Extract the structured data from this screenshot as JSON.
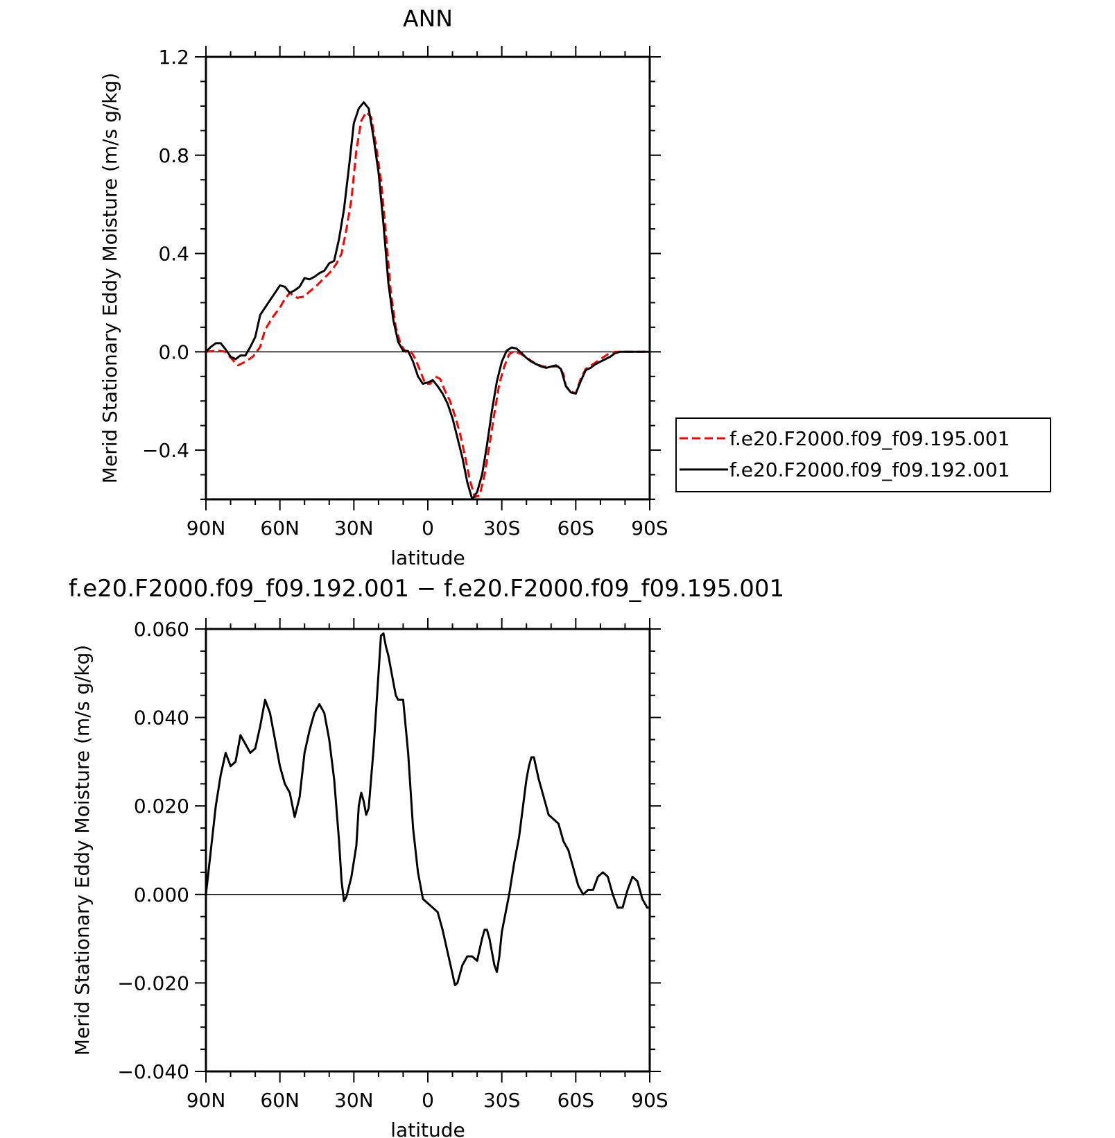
{
  "chart_data": [
    {
      "type": "line",
      "title": "ANN",
      "xlabel": "latitude",
      "ylabel": "Merid Stationary Eddy Moisture (m/s g/kg)",
      "xlim": [
        90,
        -90
      ],
      "ylim": [
        -0.6,
        1.2
      ],
      "x_ticks": [
        90,
        60,
        30,
        0,
        -30,
        -60,
        -90
      ],
      "x_tick_labels": [
        "90N",
        "60N",
        "30N",
        "0",
        "30S",
        "60S",
        "90S"
      ],
      "y_ticks": [
        -0.4,
        0.0,
        0.4,
        0.8,
        1.2
      ],
      "y_tick_labels": [
        "−0.4",
        "0.0",
        "0.4",
        "0.8",
        "1.2"
      ],
      "grid": false,
      "legend_position": "right",
      "series": [
        {
          "name": "f.e20.F2000.f09_f09.195.001",
          "color": "#ff0000",
          "style": "dashed",
          "points": [
            [
              90,
              0.0
            ],
            [
              85,
              0.005
            ],
            [
              82,
              0.0
            ],
            [
              79,
              -0.035
            ],
            [
              77,
              -0.055
            ],
            [
              74,
              -0.04
            ],
            [
              71,
              -0.02
            ],
            [
              68,
              0.02
            ],
            [
              66,
              0.09
            ],
            [
              63,
              0.14
            ],
            [
              60,
              0.18
            ],
            [
              58,
              0.215
            ],
            [
              56,
              0.24
            ],
            [
              53,
              0.22
            ],
            [
              50,
              0.225
            ],
            [
              48,
              0.245
            ],
            [
              45,
              0.27
            ],
            [
              42,
              0.3
            ],
            [
              39,
              0.33
            ],
            [
              37,
              0.36
            ],
            [
              35,
              0.4
            ],
            [
              33,
              0.5
            ],
            [
              31,
              0.62
            ],
            [
              29,
              0.82
            ],
            [
              27,
              0.94
            ],
            [
              25,
              0.975
            ],
            [
              23,
              0.955
            ],
            [
              21,
              0.84
            ],
            [
              19,
              0.7
            ],
            [
              17,
              0.48
            ],
            [
              15,
              0.24
            ],
            [
              13,
              0.1
            ],
            [
              11,
              0.03
            ],
            [
              9,
              0.0
            ],
            [
              7,
              0.005
            ],
            [
              5,
              -0.03
            ],
            [
              3,
              -0.08
            ],
            [
              1,
              -0.13
            ],
            [
              -1,
              -0.13
            ],
            [
              -3,
              -0.1
            ],
            [
              -5,
              -0.11
            ],
            [
              -7,
              -0.16
            ],
            [
              -9,
              -0.2
            ],
            [
              -11,
              -0.26
            ],
            [
              -13,
              -0.33
            ],
            [
              -15,
              -0.42
            ],
            [
              -17,
              -0.52
            ],
            [
              -19,
              -0.59
            ],
            [
              -21,
              -0.585
            ],
            [
              -23,
              -0.5
            ],
            [
              -25,
              -0.38
            ],
            [
              -27,
              -0.25
            ],
            [
              -29,
              -0.13
            ],
            [
              -31,
              -0.06
            ],
            [
              -33,
              -0.01
            ],
            [
              -35,
              0.003
            ],
            [
              -38,
              -0.01
            ],
            [
              -41,
              -0.03
            ],
            [
              -44,
              -0.05
            ],
            [
              -47,
              -0.06
            ],
            [
              -50,
              -0.06
            ],
            [
              -53,
              -0.06
            ],
            [
              -55,
              -0.09
            ],
            [
              -56,
              -0.14
            ],
            [
              -58,
              -0.16
            ],
            [
              -60,
              -0.17
            ],
            [
              -62,
              -0.11
            ],
            [
              -64,
              -0.07
            ],
            [
              -67,
              -0.05
            ],
            [
              -70,
              -0.03
            ],
            [
              -73,
              -0.01
            ],
            [
              -76,
              0.0
            ],
            [
              -80,
              0.0
            ],
            [
              -85,
              0.0
            ],
            [
              -90,
              0.0
            ]
          ]
        },
        {
          "name": "f.e20.F2000.f09_f09.192.001",
          "color": "#000000",
          "style": "solid",
          "points": [
            [
              90,
              0.0
            ],
            [
              88,
              0.02
            ],
            [
              86,
              0.035
            ],
            [
              84,
              0.035
            ],
            [
              82,
              0.01
            ],
            [
              80,
              -0.02
            ],
            [
              78,
              -0.03
            ],
            [
              76,
              -0.015
            ],
            [
              74,
              -0.015
            ],
            [
              72,
              0.02
            ],
            [
              70,
              0.06
            ],
            [
              68,
              0.15
            ],
            [
              66,
              0.18
            ],
            [
              64,
              0.21
            ],
            [
              62,
              0.24
            ],
            [
              60,
              0.27
            ],
            [
              58,
              0.265
            ],
            [
              56,
              0.24
            ],
            [
              54,
              0.25
            ],
            [
              52,
              0.265
            ],
            [
              50,
              0.3
            ],
            [
              48,
              0.295
            ],
            [
              46,
              0.305
            ],
            [
              44,
              0.32
            ],
            [
              42,
              0.33
            ],
            [
              40,
              0.36
            ],
            [
              38,
              0.37
            ],
            [
              36,
              0.46
            ],
            [
              34,
              0.58
            ],
            [
              32,
              0.75
            ],
            [
              30,
              0.93
            ],
            [
              28,
              0.99
            ],
            [
              26,
              1.015
            ],
            [
              24,
              0.99
            ],
            [
              22,
              0.87
            ],
            [
              20,
              0.73
            ],
            [
              18,
              0.52
            ],
            [
              16,
              0.28
            ],
            [
              14,
              0.13
            ],
            [
              12,
              0.04
            ],
            [
              10,
              0.005
            ],
            [
              8,
              0.003
            ],
            [
              6,
              -0.04
            ],
            [
              4,
              -0.1
            ],
            [
              2,
              -0.13
            ],
            [
              0,
              -0.125
            ],
            [
              -2,
              -0.115
            ],
            [
              -4,
              -0.14
            ],
            [
              -6,
              -0.17
            ],
            [
              -8,
              -0.21
            ],
            [
              -10,
              -0.27
            ],
            [
              -12,
              -0.35
            ],
            [
              -14,
              -0.43
            ],
            [
              -16,
              -0.53
            ],
            [
              -18,
              -0.6
            ],
            [
              -20,
              -0.57
            ],
            [
              -22,
              -0.5
            ],
            [
              -24,
              -0.38
            ],
            [
              -26,
              -0.24
            ],
            [
              -28,
              -0.12
            ],
            [
              -30,
              -0.04
            ],
            [
              -32,
              0.005
            ],
            [
              -34,
              0.018
            ],
            [
              -36,
              0.013
            ],
            [
              -38,
              -0.005
            ],
            [
              -40,
              -0.025
            ],
            [
              -42,
              -0.04
            ],
            [
              -44,
              -0.05
            ],
            [
              -46,
              -0.06
            ],
            [
              -48,
              -0.065
            ],
            [
              -50,
              -0.06
            ],
            [
              -52,
              -0.055
            ],
            [
              -54,
              -0.07
            ],
            [
              -56,
              -0.14
            ],
            [
              -58,
              -0.165
            ],
            [
              -60,
              -0.17
            ],
            [
              -62,
              -0.12
            ],
            [
              -64,
              -0.075
            ],
            [
              -66,
              -0.065
            ],
            [
              -68,
              -0.05
            ],
            [
              -70,
              -0.04
            ],
            [
              -72,
              -0.03
            ],
            [
              -74,
              -0.02
            ],
            [
              -76,
              -0.005
            ],
            [
              -78,
              0.0
            ],
            [
              -84,
              0.0
            ],
            [
              -90,
              0.0
            ]
          ]
        }
      ]
    },
    {
      "type": "line",
      "title": "f.e20.F2000.f09_f09.192.001 − f.e20.F2000.f09_f09.195.001",
      "xlabel": "latitude",
      "ylabel": "Merid Stationary Eddy Moisture (m/s g/kg)",
      "xlim": [
        90,
        -90
      ],
      "ylim": [
        -0.04,
        0.06
      ],
      "x_ticks": [
        90,
        60,
        30,
        0,
        -30,
        -60,
        -90
      ],
      "x_tick_labels": [
        "90N",
        "60N",
        "30N",
        "0",
        "30S",
        "60S",
        "90S"
      ],
      "y_ticks": [
        -0.04,
        -0.02,
        0.0,
        0.02,
        0.04,
        0.06
      ],
      "y_tick_labels": [
        "−0.040",
        "−0.020",
        "0.000",
        "0.020",
        "0.040",
        "0.060"
      ],
      "grid": false,
      "series": [
        {
          "color": "#000000",
          "style": "solid",
          "points": [
            [
              90,
              0.0
            ],
            [
              88,
              0.01
            ],
            [
              86,
              0.02
            ],
            [
              84,
              0.027
            ],
            [
              82,
              0.032
            ],
            [
              80,
              0.029
            ],
            [
              78,
              0.03
            ],
            [
              76,
              0.036
            ],
            [
              74,
              0.034
            ],
            [
              72,
              0.032
            ],
            [
              70,
              0.033
            ],
            [
              68,
              0.038
            ],
            [
              66,
              0.044
            ],
            [
              64,
              0.041
            ],
            [
              62,
              0.035
            ],
            [
              60,
              0.029
            ],
            [
              58,
              0.025
            ],
            [
              56,
              0.023
            ],
            [
              54,
              0.0175
            ],
            [
              52,
              0.022
            ],
            [
              50,
              0.032
            ],
            [
              48,
              0.037
            ],
            [
              46,
              0.041
            ],
            [
              44,
              0.043
            ],
            [
              42,
              0.041
            ],
            [
              40,
              0.035
            ],
            [
              38,
              0.026
            ],
            [
              36,
              0.012
            ],
            [
              35,
              0.003
            ],
            [
              34,
              -0.0015
            ],
            [
              33,
              -0.0005
            ],
            [
              31,
              0.004
            ],
            [
              29,
              0.011
            ],
            [
              28,
              0.02
            ],
            [
              27,
              0.023
            ],
            [
              26,
              0.021
            ],
            [
              25,
              0.018
            ],
            [
              24,
              0.0195
            ],
            [
              22,
              0.033
            ],
            [
              20,
              0.05
            ],
            [
              19,
              0.0585
            ],
            [
              18,
              0.059
            ],
            [
              17,
              0.056
            ],
            [
              16,
              0.054
            ],
            [
              14,
              0.048
            ],
            [
              13,
              0.045
            ],
            [
              12,
              0.044
            ],
            [
              10,
              0.044
            ],
            [
              8,
              0.032
            ],
            [
              6,
              0.015
            ],
            [
              4,
              0.005
            ],
            [
              2,
              -0.001
            ],
            [
              0,
              -0.002
            ],
            [
              -2,
              -0.003
            ],
            [
              -4,
              -0.004
            ],
            [
              -6,
              -0.008
            ],
            [
              -8,
              -0.013
            ],
            [
              -10,
              -0.018
            ],
            [
              -11,
              -0.0205
            ],
            [
              -12,
              -0.02
            ],
            [
              -14,
              -0.016
            ],
            [
              -16,
              -0.014
            ],
            [
              -18,
              -0.014
            ],
            [
              -20,
              -0.015
            ],
            [
              -22,
              -0.01
            ],
            [
              -23,
              -0.008
            ],
            [
              -24,
              -0.008
            ],
            [
              -25,
              -0.01
            ],
            [
              -27,
              -0.016
            ],
            [
              -28,
              -0.0175
            ],
            [
              -29,
              -0.014
            ],
            [
              -30,
              -0.0085
            ],
            [
              -33,
              0.0
            ],
            [
              -35,
              0.007
            ],
            [
              -37,
              0.013
            ],
            [
              -40,
              0.026
            ],
            [
              -41,
              0.029
            ],
            [
              -42,
              0.031
            ],
            [
              -43,
              0.031
            ],
            [
              -45,
              0.026
            ],
            [
              -47,
              0.022
            ],
            [
              -49,
              0.018
            ],
            [
              -51,
              0.017
            ],
            [
              -53,
              0.016
            ],
            [
              -55,
              0.012
            ],
            [
              -57,
              0.01
            ],
            [
              -59,
              0.006
            ],
            [
              -61,
              0.002
            ],
            [
              -63,
              0.0
            ],
            [
              -65,
              0.001
            ],
            [
              -67,
              0.001
            ],
            [
              -69,
              0.004
            ],
            [
              -71,
              0.005
            ],
            [
              -73,
              0.004
            ],
            [
              -75,
              0.0
            ],
            [
              -77,
              -0.003
            ],
            [
              -79,
              -0.003
            ],
            [
              -81,
              0.001
            ],
            [
              -83,
              0.004
            ],
            [
              -85,
              0.003
            ],
            [
              -87,
              -0.001
            ],
            [
              -89,
              -0.003
            ],
            [
              -91,
              -0.003
            ],
            [
              -92,
              -0.0025
            ]
          ]
        }
      ]
    }
  ]
}
